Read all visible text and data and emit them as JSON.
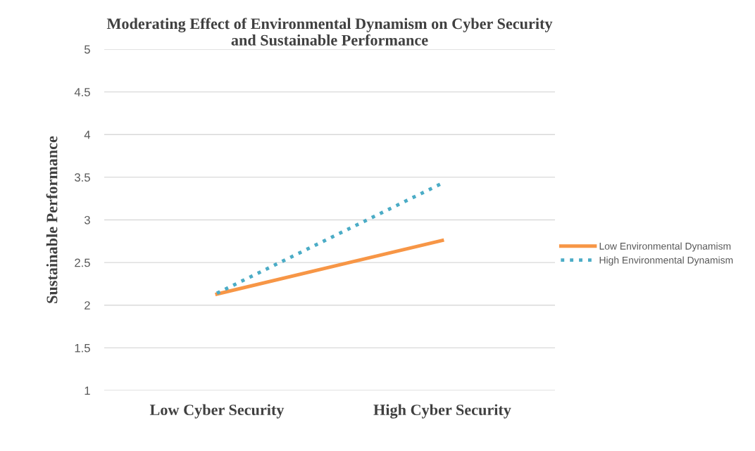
{
  "chart_data": {
    "type": "line",
    "title": "Moderating Effect of Environmental Dynamism on Cyber Security\nand Sustainable Performance",
    "ylabel": "Sustainable Performance",
    "categories": [
      "Low Cyber Security",
      "High Cyber Security"
    ],
    "series": [
      {
        "name": "Low Environmental Dynamism",
        "color": "#f79646",
        "values": [
          2.13,
          2.76
        ],
        "line_style": "solid"
      },
      {
        "name": "High Environmental Dynamism",
        "color": "#4bacc6",
        "values": [
          2.14,
          3.43
        ],
        "line_style": "dotted"
      }
    ],
    "ylim": [
      1,
      5
    ],
    "yticks": [
      1,
      1.5,
      2,
      2.5,
      3,
      3.5,
      4,
      4.5,
      5
    ],
    "grid": "y",
    "legend": "right",
    "marker": "none"
  }
}
